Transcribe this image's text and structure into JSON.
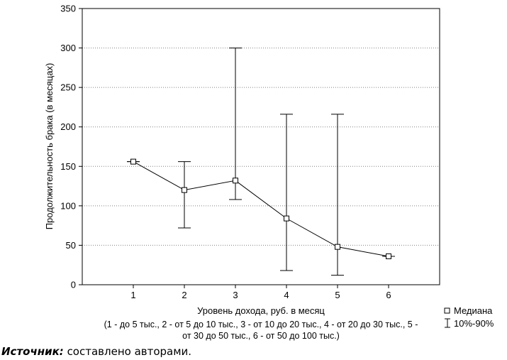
{
  "chart_data": {
    "type": "line",
    "x": [
      1,
      2,
      3,
      4,
      5,
      6
    ],
    "series": [
      {
        "name": "Медиана",
        "values": [
          156,
          120,
          132,
          84,
          48,
          36
        ]
      }
    ],
    "error_bars": {
      "name": "10%-90%",
      "low": [
        156,
        72,
        108,
        18,
        12,
        36
      ],
      "high": [
        156,
        156,
        300,
        216,
        216,
        36
      ]
    },
    "xlabel": "Уровень дохода, руб. в месяц",
    "xlabel_note_line1": "(1 - до 5 тыс., 2 - от 5 до 10 тыс., 3 - от 10 до 20 тыс., 4 - от 20 до 30 тыс., 5 -",
    "xlabel_note_line2": "от 30 до 50 тыс., 6 - от 50 до 100 тыс.)",
    "ylabel": "Продолжительность брака (в месяцах)",
    "xticks": [
      1,
      2,
      3,
      4,
      5,
      6
    ],
    "yticks": [
      0,
      50,
      100,
      150,
      200,
      250,
      300,
      350
    ],
    "xlim": [
      0,
      7
    ],
    "ylim": [
      0,
      350
    ],
    "grid": "horizontal dotted",
    "legend_position": "bottom-right",
    "colors": {
      "line": "#000000",
      "grid": "#808080",
      "marker_fill": "#ffffff"
    }
  },
  "source": {
    "label": "Источник:",
    "text": " составлено авторами."
  }
}
